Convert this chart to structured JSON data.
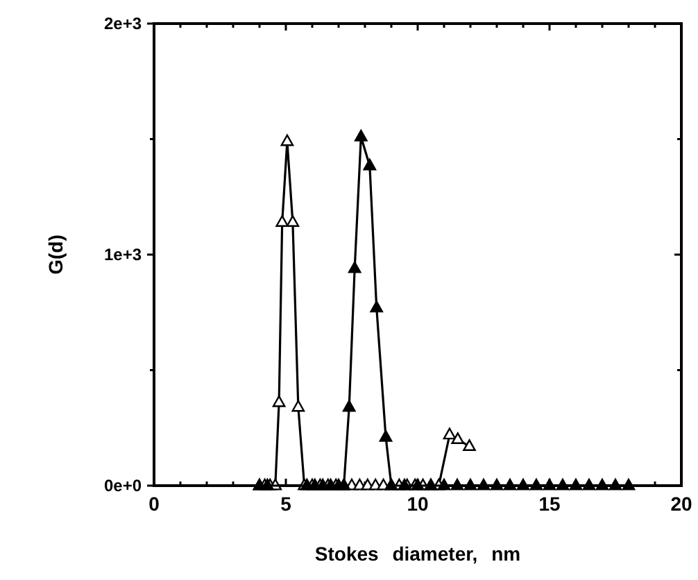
{
  "chart_data": {
    "type": "line",
    "xlabel": "Stokes diameter, nm",
    "ylabel": "G(d)",
    "xlim": [
      0,
      20
    ],
    "ylim": [
      0,
      2000
    ],
    "xticks": [
      0,
      {
        "value": 1,
        "label": null
      },
      {
        "value": 2,
        "label": null
      },
      {
        "value": 3,
        "label": null
      },
      {
        "value": 4,
        "label": null
      },
      5,
      {
        "value": 6,
        "label": null
      },
      {
        "value": 7,
        "label": null
      },
      {
        "value": 8,
        "label": null
      },
      {
        "value": 9,
        "label": null
      },
      10,
      {
        "value": 11,
        "label": null
      },
      {
        "value": 12,
        "label": null
      },
      {
        "value": 13,
        "label": null
      },
      {
        "value": 14,
        "label": null
      },
      15,
      {
        "value": 16,
        "label": null
      },
      {
        "value": 17,
        "label": null
      },
      {
        "value": 18,
        "label": null
      },
      {
        "value": 19,
        "label": null
      },
      20
    ],
    "yticks": [
      {
        "value": 0,
        "label": "0e+0"
      },
      {
        "value": 500,
        "label": null
      },
      {
        "value": 1000,
        "label": "1e+3"
      },
      {
        "value": 1500,
        "label": null
      },
      {
        "value": 2000,
        "label": "2e+3"
      }
    ],
    "marker": "triangle",
    "grid": false,
    "series": [
      {
        "color": "#000000",
        "x": [
          4.0,
          4.2,
          4.4,
          4.6,
          4.74,
          4.86,
          5.05,
          5.26,
          5.47,
          5.7,
          6.0,
          6.3,
          6.6,
          6.9,
          7.2,
          7.5,
          7.8,
          8.1,
          8.4,
          8.7,
          9.0,
          9.3,
          9.6,
          9.9,
          10.2,
          10.5,
          10.8,
          11.21,
          11.52,
          11.96
        ],
        "values": [
          0,
          0,
          0,
          0,
          360,
          1140,
          1490,
          1140,
          340,
          0,
          0,
          0,
          0,
          0,
          0,
          0,
          0,
          0,
          0,
          0,
          0,
          0,
          0,
          0,
          0,
          0,
          0,
          220,
          200,
          170
        ]
      },
      {
        "color": "#000000",
        "x": [
          4.0,
          4.3,
          5.8,
          6.1,
          6.4,
          6.7,
          7.0,
          7.2,
          7.4,
          7.61,
          7.85,
          8.18,
          8.44,
          8.79,
          9.0,
          9.5,
          10.0,
          10.5,
          11.0,
          11.5,
          12.0,
          12.5,
          13.0,
          13.5,
          14.0,
          14.5,
          15.0,
          15.5,
          16.0,
          16.5,
          17.0,
          17.5,
          18.0
        ],
        "values": [
          0,
          0,
          0,
          0,
          0,
          0,
          0,
          0,
          340,
          940,
          1510,
          1385,
          770,
          210,
          0,
          0,
          0,
          0,
          0,
          0,
          0,
          0,
          0,
          0,
          0,
          0,
          0,
          0,
          0,
          0,
          0,
          0,
          0
        ]
      }
    ]
  }
}
